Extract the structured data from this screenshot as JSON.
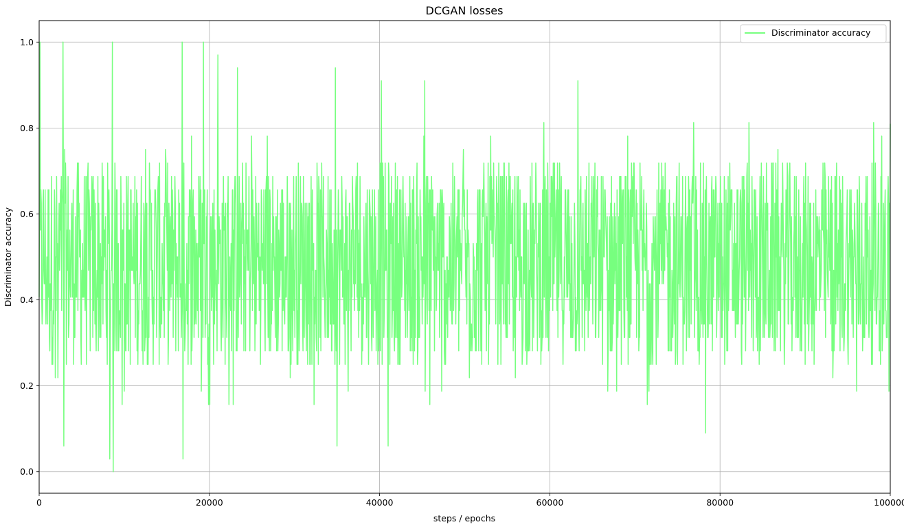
{
  "chart_data": {
    "type": "line",
    "title": "DCGAN losses",
    "xlabel": "steps / epochs",
    "ylabel": "Discriminator accuracy",
    "xlim": [
      0,
      100000
    ],
    "ylim": [
      -0.05,
      1.05
    ],
    "x_ticks": [
      0,
      20000,
      40000,
      60000,
      80000,
      100000
    ],
    "x_tick_labels": [
      "0",
      "20000",
      "40000",
      "60000",
      "80000",
      "100000"
    ],
    "y_ticks": [
      0.0,
      0.2,
      0.4,
      0.6,
      0.8,
      1.0
    ],
    "y_tick_labels": [
      "0.0",
      "0.2",
      "0.4",
      "0.6",
      "0.8",
      "1.0"
    ],
    "grid": true,
    "legend": {
      "position": "top-right",
      "entries": [
        "Discriminator accuracy"
      ]
    },
    "series": [
      {
        "name": "Discriminator accuracy",
        "color": "#77ff7f",
        "x_range": [
          0,
          100000
        ],
        "step": 50,
        "typical_min": 0.25,
        "typical_max": 0.72,
        "extremes": [
          {
            "x": 100,
            "y": 1.0
          },
          {
            "x": 2800,
            "y": 1.0
          },
          {
            "x": 2900,
            "y": 0.06
          },
          {
            "x": 8300,
            "y": 0.03
          },
          {
            "x": 8600,
            "y": 1.0
          },
          {
            "x": 8700,
            "y": 0.0
          },
          {
            "x": 16800,
            "y": 1.0
          },
          {
            "x": 16900,
            "y": 0.03
          },
          {
            "x": 19300,
            "y": 1.0
          },
          {
            "x": 21000,
            "y": 0.97
          },
          {
            "x": 23300,
            "y": 0.94
          },
          {
            "x": 34800,
            "y": 0.94
          },
          {
            "x": 35000,
            "y": 0.06
          },
          {
            "x": 40200,
            "y": 0.91
          },
          {
            "x": 41000,
            "y": 0.06
          },
          {
            "x": 45300,
            "y": 0.91
          },
          {
            "x": 63300,
            "y": 0.91
          },
          {
            "x": 78300,
            "y": 0.09
          },
          {
            "x": 100000,
            "y": 0.81
          }
        ]
      }
    ]
  }
}
